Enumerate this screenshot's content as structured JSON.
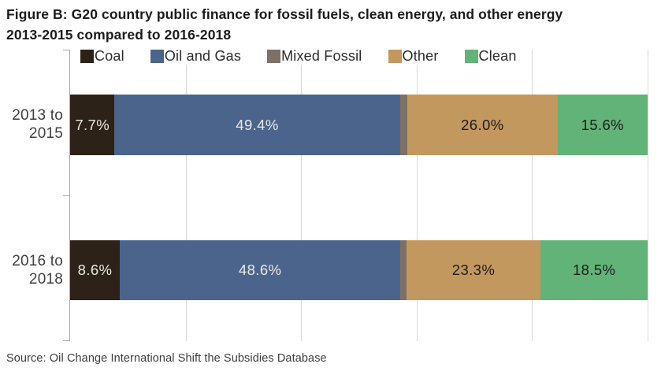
{
  "title": {
    "line1": "Figure B: G20 country public finance for fossil fuels, clean energy, and other energy",
    "line2": "2013-2015 compared to 2016-2018"
  },
  "source_note": "Source: Oil Change International Shift the Subsidies Database",
  "colors": {
    "coal": "#2d2217",
    "oil_and_gas": "#4b648b",
    "mixed_fossil": "#7d7066",
    "other": "#c3985f",
    "clean": "#62b377",
    "label_light": "#e9e9e6",
    "label_dark": "#1c1c1c",
    "axis": "#a9a9a9",
    "gridline": "#d9d9d7"
  },
  "chart_data": {
    "type": "bar",
    "orientation": "horizontal",
    "stacked": true,
    "title": "Figure B: G20 country public finance for fossil fuels, clean energy, and other energy 2013-2015 compared to 2016-2018",
    "categories": [
      "2013 to 2015",
      "2016 to 2018"
    ],
    "category_display_lines": [
      [
        "2013 to",
        "2015"
      ],
      [
        "2016 to",
        "2018"
      ]
    ],
    "xlim": [
      0,
      100
    ],
    "x_unit": "%",
    "gridline_step_pct": 20,
    "grid": true,
    "legend_position": "top",
    "legend_entries": [
      "Coal",
      "Oil and Gas",
      "Mixed Fossil",
      "Other",
      "Clean"
    ],
    "series": [
      {
        "name": "Coal",
        "color": "#2d2217",
        "values": [
          7.7,
          8.6
        ],
        "labels": [
          "7.7%",
          "8.6%"
        ],
        "label_style": "light"
      },
      {
        "name": "Oil and Gas",
        "color": "#4b648b",
        "values": [
          49.4,
          48.6
        ],
        "labels": [
          "49.4%",
          "48.6%"
        ],
        "label_style": "light"
      },
      {
        "name": "Mixed Fossil",
        "color": "#7d7066",
        "values": [
          1.3,
          1.0
        ],
        "labels": [
          "",
          ""
        ],
        "label_style": "none"
      },
      {
        "name": "Other",
        "color": "#c3985f",
        "values": [
          26.0,
          23.3
        ],
        "labels": [
          "26.0%",
          "23.3%"
        ],
        "label_style": "dark"
      },
      {
        "name": "Clean",
        "color": "#62b377",
        "values": [
          15.6,
          18.5
        ],
        "labels": [
          "15.6%",
          "18.5%"
        ],
        "label_style": "dark"
      }
    ]
  }
}
